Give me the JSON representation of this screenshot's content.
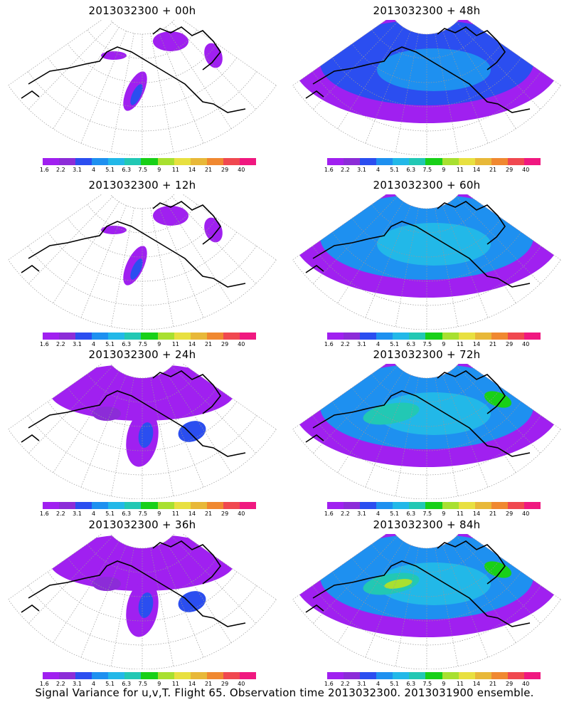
{
  "colorbar": {
    "labels": [
      "1.6",
      "2.2",
      "3.1",
      "4",
      "5.1",
      "6.3",
      "7.5",
      "9",
      "11",
      "14",
      "21",
      "29",
      "40"
    ],
    "colors": [
      "#a020f0",
      "#8c2cd8",
      "#2b4ef0",
      "#1e90f0",
      "#22b8e8",
      "#22c8b4",
      "#18d018",
      "#a8e030",
      "#e8e040",
      "#e8b838",
      "#f08830",
      "#f04850",
      "#f01880"
    ]
  },
  "panels": [
    {
      "title": "2013032300 + 00h",
      "level": 0
    },
    {
      "title": "2013032300 + 48h",
      "level": 2
    },
    {
      "title": "2013032300 + 12h",
      "level": 0
    },
    {
      "title": "2013032300 + 60h",
      "level": 3
    },
    {
      "title": "2013032300 + 24h",
      "level": 1
    },
    {
      "title": "2013032300 + 72h",
      "level": 4
    },
    {
      "title": "2013032300 + 36h",
      "level": 1
    },
    {
      "title": "2013032300 + 84h",
      "level": 5
    }
  ],
  "footer": "Signal Variance for u,v,T. Flight 65. Observation time 2013032300. 2013031900 ensemble."
}
